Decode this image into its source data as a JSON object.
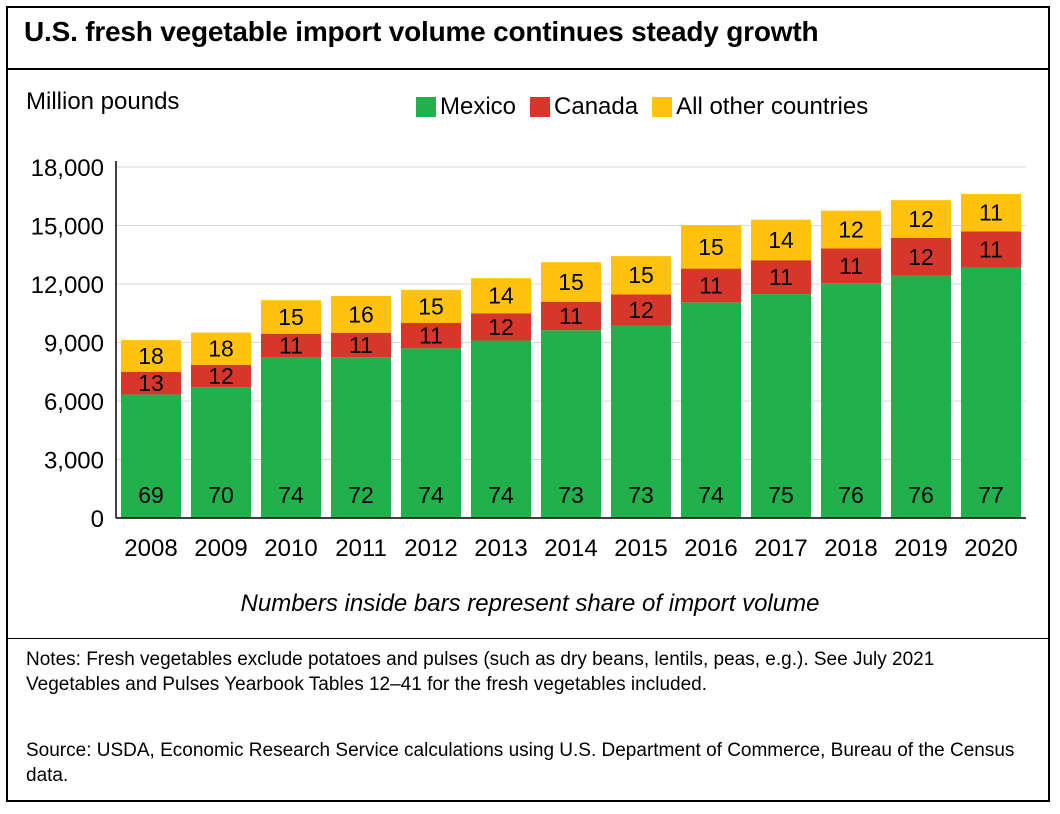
{
  "header": {
    "title": "U.S. fresh vegetable import volume continues steady growth",
    "unit_label": "Million pounds"
  },
  "colors": {
    "mexico": "#21b04b",
    "canada": "#d7372a",
    "other": "#ffc30f"
  },
  "chart_data": {
    "type": "bar",
    "stacked": true,
    "title": "U.S. fresh vegetable import volume continues steady growth",
    "ylabel": "Million pounds",
    "xlabel": "",
    "categories": [
      "2008",
      "2009",
      "2010",
      "2011",
      "2012",
      "2013",
      "2014",
      "2015",
      "2016",
      "2017",
      "2018",
      "2019",
      "2020"
    ],
    "ylim": [
      0,
      18000
    ],
    "yticks": [
      0,
      3000,
      6000,
      9000,
      12000,
      15000,
      18000
    ],
    "ytick_labels": [
      "0",
      "3,000",
      "6,000",
      "9,000",
      "12,000",
      "15,000",
      "18,000"
    ],
    "grid": true,
    "legend_position": "top-right",
    "series": [
      {
        "name": "Mexico",
        "values": [
          6330,
          6700,
          8220,
          8250,
          8700,
          9100,
          9630,
          9870,
          11060,
          11480,
          12040,
          12430,
          12850
        ],
        "share_labels": [
          "69",
          "70",
          "74",
          "72",
          "74",
          "74",
          "73",
          "73",
          "74",
          "75",
          "76",
          "76",
          "77"
        ]
      },
      {
        "name": "Canada",
        "values": [
          1170,
          1150,
          1230,
          1250,
          1300,
          1400,
          1460,
          1600,
          1730,
          1740,
          1780,
          1930,
          1850
        ],
        "share_labels": [
          "13",
          "12",
          "11",
          "11",
          "11",
          "12",
          "11",
          "12",
          "11",
          "11",
          "11",
          "12",
          "11"
        ]
      },
      {
        "name": "All other countries",
        "values": [
          1620,
          1660,
          1720,
          1890,
          1700,
          1800,
          2030,
          1960,
          2230,
          2080,
          1940,
          1940,
          1920
        ],
        "share_labels": [
          "18",
          "18",
          "15",
          "16",
          "15",
          "14",
          "15",
          "15",
          "15",
          "14",
          "12",
          "12",
          "11"
        ]
      }
    ],
    "annotation": "Numbers inside bars represent share of import volume"
  },
  "footer": {
    "notes": "Notes: Fresh vegetables exclude potatoes and pulses (such as dry beans, lentils, peas, e.g.). See July 2021 Vegetables and Pulses Yearbook Tables 12–41 for the fresh vegetables included.",
    "source": "Source: USDA, Economic Research Service calculations using U.S. Department of Commerce, Bureau of the Census data."
  }
}
